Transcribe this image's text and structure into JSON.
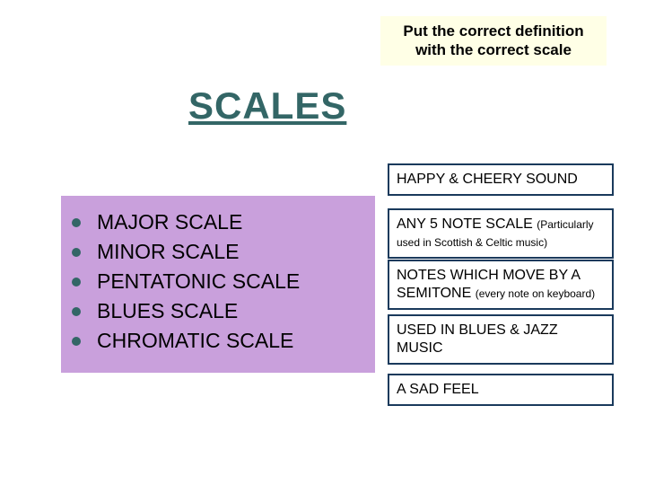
{
  "instruction": "Put the correct definition with the correct scale",
  "title": "SCALES",
  "scales_box": {
    "background_color": "#c9a0dc",
    "bullet_color": "#336666",
    "items": [
      {
        "label": "MAJOR SCALE"
      },
      {
        "label": "MINOR SCALE"
      },
      {
        "label": "PENTATONIC SCALE"
      },
      {
        "label": "BLUES SCALE"
      },
      {
        "label": "CHROMATIC SCALE"
      }
    ]
  },
  "definitions": [
    {
      "text": "HAPPY & CHEERY SOUND",
      "small": ""
    },
    {
      "text": "ANY 5 NOTE SCALE ",
      "small": "(Particularly used in Scottish & Celtic music)"
    },
    {
      "text": "NOTES WHICH MOVE BY A SEMITONE ",
      "small": "(every note on keyboard)"
    },
    {
      "text": "USED IN BLUES & JAZZ MUSIC",
      "small": ""
    },
    {
      "text": "A SAD FEEL",
      "small": ""
    }
  ],
  "colors": {
    "instruction_bg": "#ffffe6",
    "title_color": "#336666",
    "def_border": "#1a3a5c",
    "page_bg": "#ffffff"
  },
  "typography": {
    "title_fontsize": 42,
    "instruction_fontsize": 17,
    "scale_label_fontsize": 23,
    "def_fontsize": 16,
    "def_small_fontsize": 12
  }
}
